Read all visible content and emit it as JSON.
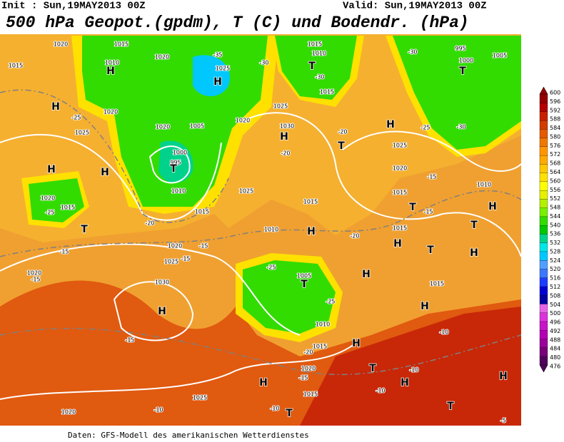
{
  "header": {
    "init": "Init : Sun,19MAY2013 00Z",
    "valid": "Valid: Sun,19MAY2013 00Z",
    "title": "500 hPa Geopot.(gpdm), T (C) und Bodendr. (hPa)"
  },
  "footer": "Daten: GFS-Modell des amerikanischen Wetterdienstes",
  "colorbar": {
    "labels": [
      476,
      480,
      484,
      488,
      492,
      496,
      500,
      504,
      508,
      512,
      516,
      520,
      524,
      528,
      532,
      536,
      540,
      544,
      548,
      552,
      556,
      560,
      564,
      568,
      572,
      576,
      580,
      584,
      588,
      592,
      596,
      600
    ],
    "colors": [
      "#50005a",
      "#780078",
      "#9a009a",
      "#b400b4",
      "#c814c8",
      "#dc32dc",
      "#e664e6",
      "#0000a0",
      "#0000d2",
      "#1e3cff",
      "#3c78ff",
      "#50a0ff",
      "#00c8ff",
      "#00e6e6",
      "#00d28c",
      "#00c800",
      "#32dc00",
      "#78f000",
      "#b4f000",
      "#e6f000",
      "#ffff00",
      "#ffe100",
      "#ffc800",
      "#ffaa00",
      "#ff9600",
      "#f07800",
      "#e65a00",
      "#d23c00",
      "#c81e00",
      "#b40000",
      "#960000"
    ]
  },
  "map_labels": [
    "1020",
    "1015",
    "1010",
    "H",
    "1015",
    "1020",
    "-35",
    "1025",
    "H",
    "1010",
    "1015",
    "T",
    "-30",
    "1015",
    "-30",
    "-30",
    "995",
    "1000",
    "1005",
    "T",
    "H",
    "-25",
    "1020",
    "1020",
    "1005",
    "1000",
    "995",
    "T",
    "1010",
    "1025",
    "H",
    "H",
    "1020",
    "1015",
    "-25",
    "T",
    "-20",
    "1015",
    "1020",
    "1025",
    "1030",
    "H",
    "-20",
    "T",
    "H",
    "-25",
    "-30",
    "1025",
    "1020",
    "-20",
    "1015",
    "-15",
    "T",
    "H",
    "T",
    "1015",
    "H",
    "T",
    "H",
    "1010",
    "-15",
    "1025",
    "1015",
    "1010",
    "H",
    "-20",
    "-25",
    "1005",
    "T",
    "-25",
    "1010",
    "H",
    "1015",
    "H",
    "-10",
    "1030",
    "H",
    "1025",
    "1020",
    "-15",
    "-15",
    "1020",
    "-15",
    "-15",
    "1015",
    "H",
    "1020",
    "-20",
    "-15",
    "H",
    "1015",
    "T",
    "-10",
    "H",
    "-10",
    "1025",
    "1020",
    "-10",
    "-10",
    "T",
    "T",
    "H",
    "-5",
    "-15"
  ]
}
